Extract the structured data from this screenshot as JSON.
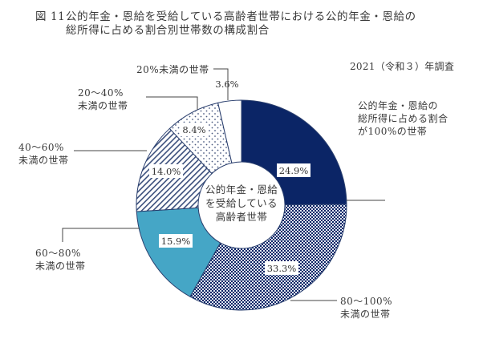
{
  "title": {
    "figure_no": "図 11",
    "line1": "公的年金・恩給を受給している高齢者世帯における公的年金・恩給の",
    "line2": "総所得に占める割合別世帯数の構成割合"
  },
  "survey_note": "2021（令和３）年調査",
  "center_label": [
    "公的年金・恩給",
    "を受給している",
    "高齢者世帯"
  ],
  "labels": {
    "s100": [
      "公的年金・恩給の",
      "総所得に占める割合",
      "が100%の世帯"
    ],
    "s80_100": [
      "80～100%",
      "未満の世帯"
    ],
    "s60_80": [
      "60～80%",
      "未満の世帯"
    ],
    "s40_60": [
      "40～60%",
      "未満の世帯"
    ],
    "s20_40": [
      "20～40%",
      "未満の世帯"
    ],
    "s0_20": [
      "20%未満の世帯"
    ]
  },
  "value_labels": {
    "s100": "24.9%",
    "s80_100": "33.3%",
    "s60_80": "15.9%",
    "s40_60": "14.0%",
    "s20_40": "8.4%",
    "s0_20": "3.6%"
  },
  "colors": {
    "navy": "#0b2566",
    "teal": "#45a6c6",
    "outline": "#2a3f6e",
    "text": "#3a3a3a"
  },
  "chart_data": {
    "type": "pie",
    "subtype": "donut",
    "title": "図 11 公的年金・恩給を受給している高齢者世帯における公的年金・恩給の総所得に占める割合別世帯数の構成割合",
    "subtitle": "2021（令和３）年調査",
    "center_text": "公的年金・恩給を受給している高齢者世帯",
    "categories": [
      "公的年金・恩給の総所得に占める割合が100%の世帯",
      "80～100%未満の世帯",
      "60～80%未満の世帯",
      "40～60%未満の世帯",
      "20～40%未満の世帯",
      "20%未満の世帯"
    ],
    "values": [
      24.9,
      33.3,
      15.9,
      14.0,
      8.4,
      3.6
    ],
    "unit": "%",
    "start_angle": "12 o'clock, clockwise",
    "fills": [
      "solid navy",
      "navy checkered",
      "solid teal",
      "diagonal hatch",
      "dotted",
      "white"
    ]
  }
}
